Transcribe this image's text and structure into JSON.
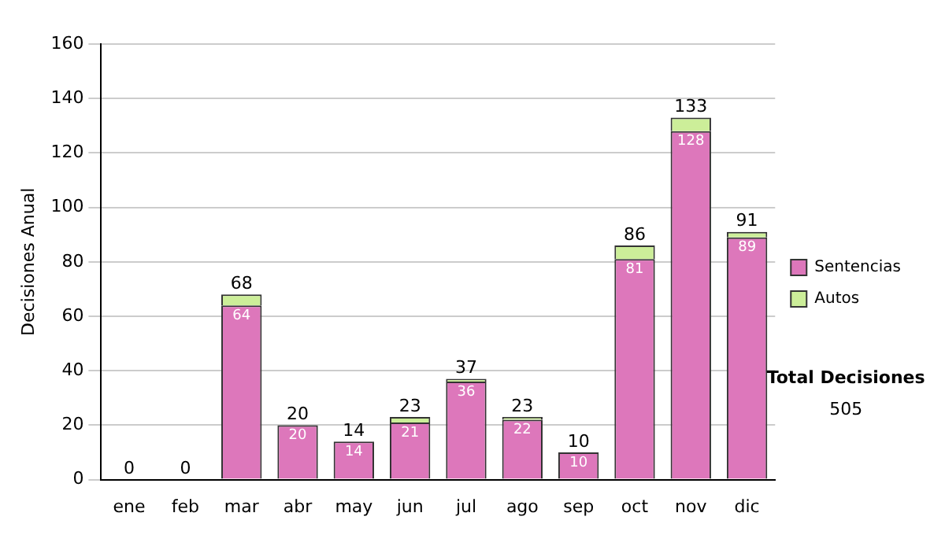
{
  "chart_data": {
    "type": "bar",
    "ylabel": "Decisiones Anual",
    "categories": [
      "ene",
      "feb",
      "mar",
      "abr",
      "may",
      "jun",
      "jul",
      "ago",
      "sep",
      "oct",
      "nov",
      "dic"
    ],
    "stacked": true,
    "series": [
      {
        "name": "Sentencias",
        "color": "#dd77bb",
        "values": [
          0,
          0,
          64,
          20,
          14,
          21,
          36,
          22,
          10,
          81,
          128,
          89
        ],
        "value_labels": [
          null,
          null,
          "64",
          "20",
          "14",
          "21",
          "36",
          "22",
          "10",
          "81",
          "128",
          "89"
        ]
      },
      {
        "name": "Autos",
        "color": "#ccee99",
        "values": [
          0,
          0,
          4,
          0,
          0,
          2,
          1,
          1,
          0,
          5,
          5,
          2
        ]
      }
    ],
    "totals": [
      "0",
      "0",
      "68",
      "20",
      "14",
      "23",
      "37",
      "23",
      "10",
      "86",
      "133",
      "91"
    ],
    "ylim": [
      0,
      160
    ],
    "yticks": [
      0,
      20,
      40,
      60,
      80,
      100,
      120,
      140,
      160
    ],
    "grid": "y",
    "legend": "right",
    "annotations": [
      "Total Decisiones",
      "505"
    ]
  }
}
